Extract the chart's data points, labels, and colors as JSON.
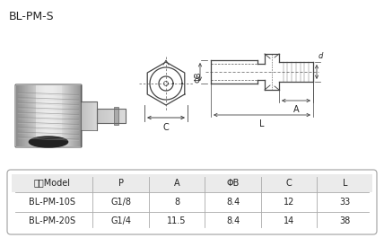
{
  "title": "BL-PM-S",
  "bg_color": "#ffffff",
  "table_headers": [
    "型号Model",
    "P",
    "A",
    "ΦB",
    "C",
    "L"
  ],
  "table_rows": [
    [
      "BL-PM-10S",
      "G1/8",
      "8",
      "8.4",
      "12",
      "33"
    ],
    [
      "BL-PM-20S",
      "G1/4",
      "11.5",
      "8.4",
      "14",
      "38"
    ]
  ],
  "table_header_bg": "#ebebeb",
  "table_border_color": "#aaaaaa",
  "drawing_line_color": "#444444",
  "text_color": "#222222",
  "photo_bg": "#d8d8d8",
  "photo_fitting_color": "#b8b8b8",
  "photo_shadow": "#888888"
}
